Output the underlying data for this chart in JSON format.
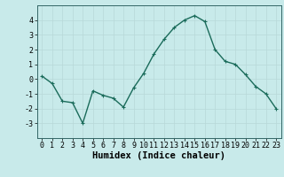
{
  "x": [
    0,
    1,
    2,
    3,
    4,
    5,
    6,
    7,
    8,
    9,
    10,
    11,
    12,
    13,
    14,
    15,
    16,
    17,
    18,
    19,
    20,
    21,
    22,
    23
  ],
  "y": [
    0.2,
    -0.3,
    -1.5,
    -1.6,
    -3.0,
    -0.8,
    -1.1,
    -1.3,
    -1.9,
    -0.6,
    0.4,
    1.7,
    2.7,
    3.5,
    4.0,
    4.3,
    3.9,
    2.0,
    1.2,
    1.0,
    0.3,
    -0.5,
    -1.0,
    -2.0
  ],
  "line_color": "#1a6b5a",
  "marker": "+",
  "marker_size": 3.5,
  "linewidth": 1.0,
  "xlabel": "Humidex (Indice chaleur)",
  "ylim": [
    -4,
    5
  ],
  "xlim": [
    -0.5,
    23.5
  ],
  "yticks": [
    -3,
    -2,
    -1,
    0,
    1,
    2,
    3,
    4
  ],
  "xticks": [
    0,
    1,
    2,
    3,
    4,
    5,
    6,
    7,
    8,
    9,
    10,
    11,
    12,
    13,
    14,
    15,
    16,
    17,
    18,
    19,
    20,
    21,
    22,
    23
  ],
  "bg_color": "#c8eaea",
  "grid_color_major": "#b8d8d8",
  "grid_color_minor": "#d4e8e8",
  "label_fontsize": 7,
  "tick_fontsize": 6,
  "xlabel_fontsize": 7.5
}
